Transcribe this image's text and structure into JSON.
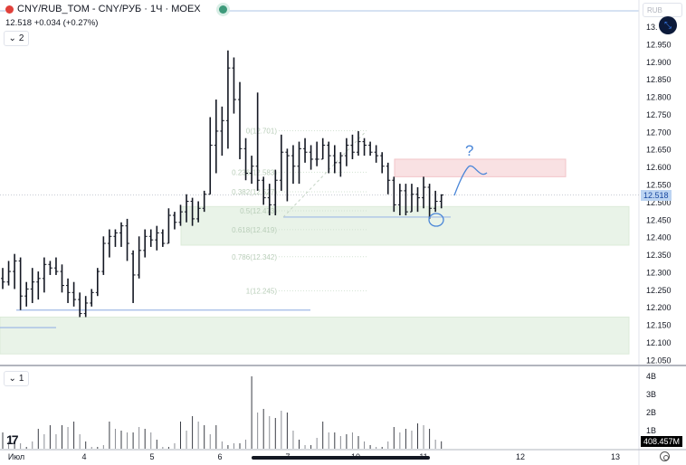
{
  "header": {
    "symbol": "CNY/RUB_TOM - CNY/РУБ · 1Ч · MOEX",
    "last": "12.518",
    "change": "+0.034 (+0.27%)",
    "pane1_toggle": "2",
    "pane2_toggle": "1",
    "currency": "RUB",
    "logo": "TV"
  },
  "price_axis": {
    "labels": [
      "13.",
      "12.950",
      "12.900",
      "12.850",
      "12.800",
      "12.750",
      "12.700",
      "12.650",
      "12.600",
      "12.550",
      "12.500",
      "12.450",
      "12.400",
      "12.350",
      "12.300",
      "12.250",
      "12.200",
      "12.150",
      "12.100",
      "12.050"
    ],
    "current": "12.518"
  },
  "volume_axis": {
    "labels": [
      "4B",
      "3B",
      "2B",
      "1B"
    ],
    "current": "408.457M"
  },
  "time_axis": {
    "labels": [
      "Июл",
      "4",
      "5",
      "6",
      "7",
      "10",
      "11",
      "12",
      "13"
    ]
  },
  "drawings": {
    "question_mark": "?"
  },
  "colors": {
    "bar": "#131722",
    "zone_green": "#e9f3e8",
    "zone_red": "#f9e1e3",
    "line_blue": "#9fb9e6",
    "ink": "#4a86d8"
  },
  "chart_data": {
    "type": "ohlc",
    "title": "CNY/RUB_TOM 1H",
    "ylim": [
      12.03,
      13.0
    ],
    "ohlc": [
      [
        12.28,
        12.31,
        12.25,
        12.27
      ],
      [
        12.27,
        12.33,
        12.26,
        12.3
      ],
      [
        12.3,
        12.35,
        12.25,
        12.33
      ],
      [
        12.33,
        12.34,
        12.19,
        12.23
      ],
      [
        12.23,
        12.27,
        12.2,
        12.25
      ],
      [
        12.25,
        12.31,
        12.21,
        12.27
      ],
      [
        12.27,
        12.3,
        12.22,
        12.28
      ],
      [
        12.28,
        12.34,
        12.24,
        12.32
      ],
      [
        12.32,
        12.33,
        12.29,
        12.31
      ],
      [
        12.31,
        12.34,
        12.29,
        12.3
      ],
      [
        12.3,
        12.32,
        12.24,
        12.26
      ],
      [
        12.26,
        12.28,
        12.21,
        12.24
      ],
      [
        12.24,
        12.27,
        12.2,
        12.22
      ],
      [
        12.22,
        12.24,
        12.17,
        12.18
      ],
      [
        12.18,
        12.23,
        12.17,
        12.21
      ],
      [
        12.21,
        12.25,
        12.2,
        12.24
      ],
      [
        12.24,
        12.31,
        12.23,
        12.3
      ],
      [
        12.3,
        12.4,
        12.29,
        12.38
      ],
      [
        12.38,
        12.42,
        12.34,
        12.4
      ],
      [
        12.4,
        12.42,
        12.37,
        12.41
      ],
      [
        12.41,
        12.44,
        12.37,
        12.43
      ],
      [
        12.43,
        12.45,
        12.33,
        12.38
      ],
      [
        12.35,
        12.36,
        12.21,
        12.29
      ],
      [
        12.29,
        12.4,
        12.28,
        12.36
      ],
      [
        12.36,
        12.42,
        12.34,
        12.4
      ],
      [
        12.4,
        12.42,
        12.37,
        12.39
      ],
      [
        12.39,
        12.43,
        12.36,
        12.41
      ],
      [
        12.41,
        12.42,
        12.37,
        12.38
      ],
      [
        12.38,
        12.48,
        12.38,
        12.46
      ],
      [
        12.46,
        12.47,
        12.42,
        12.44
      ],
      [
        12.44,
        12.49,
        12.43,
        12.47
      ],
      [
        12.47,
        12.52,
        12.44,
        12.5
      ],
      [
        12.5,
        12.51,
        12.43,
        12.45
      ],
      [
        12.45,
        12.5,
        12.44,
        12.48
      ],
      [
        12.48,
        12.53,
        12.47,
        12.52
      ],
      [
        12.52,
        12.74,
        12.52,
        12.66
      ],
      [
        12.66,
        12.79,
        12.58,
        12.7
      ],
      [
        12.7,
        12.77,
        12.63,
        12.73
      ],
      [
        12.73,
        12.93,
        12.65,
        12.88
      ],
      [
        12.88,
        12.91,
        12.75,
        12.79
      ],
      [
        12.79,
        12.84,
        12.62,
        12.65
      ],
      [
        12.65,
        12.68,
        12.56,
        12.58
      ],
      [
        12.58,
        12.63,
        12.55,
        12.6
      ],
      [
        12.6,
        12.81,
        12.53,
        12.56
      ],
      [
        12.56,
        12.57,
        12.49,
        12.51
      ],
      [
        12.51,
        12.55,
        12.46,
        12.49
      ],
      [
        12.49,
        12.59,
        12.46,
        12.56
      ],
      [
        12.56,
        12.69,
        12.53,
        12.64
      ],
      [
        12.64,
        12.65,
        12.5,
        12.63
      ],
      [
        12.63,
        12.66,
        12.55,
        12.6
      ],
      [
        12.6,
        12.67,
        12.55,
        12.65
      ],
      [
        12.65,
        12.68,
        12.61,
        12.64
      ],
      [
        12.64,
        12.66,
        12.59,
        12.62
      ],
      [
        12.62,
        12.67,
        12.6,
        12.62
      ],
      [
        12.62,
        12.68,
        12.62,
        12.66
      ],
      [
        12.66,
        12.67,
        12.58,
        12.63
      ],
      [
        12.63,
        12.66,
        12.58,
        12.61
      ],
      [
        12.61,
        12.64,
        12.57,
        12.63
      ],
      [
        12.63,
        12.68,
        12.6,
        12.66
      ],
      [
        12.66,
        12.69,
        12.62,
        12.64
      ],
      [
        12.64,
        12.7,
        12.63,
        12.67
      ],
      [
        12.67,
        12.68,
        12.63,
        12.66
      ],
      [
        12.66,
        12.67,
        12.63,
        12.64
      ],
      [
        12.64,
        12.66,
        12.61,
        12.63
      ],
      [
        12.63,
        12.64,
        12.58,
        12.6
      ],
      [
        12.6,
        12.61,
        12.52,
        12.56
      ],
      [
        12.56,
        12.57,
        12.47,
        12.49
      ],
      [
        12.49,
        12.55,
        12.46,
        12.53
      ],
      [
        12.53,
        12.55,
        12.46,
        12.47
      ],
      [
        12.47,
        12.55,
        12.47,
        12.52
      ],
      [
        12.52,
        12.54,
        12.47,
        12.51
      ],
      [
        12.51,
        12.57,
        12.48,
        12.54
      ],
      [
        12.54,
        12.55,
        12.45,
        12.48
      ],
      [
        12.48,
        12.53,
        12.47,
        12.5
      ],
      [
        12.5,
        12.52,
        12.48,
        12.518
      ]
    ],
    "volume_billions": [
      0.9,
      0.4,
      0.4,
      0.3,
      0.1,
      0.4,
      1.1,
      0.8,
      1.3,
      0.8,
      1.3,
      1.2,
      1.5,
      0.8,
      0.4,
      0.1,
      0.1,
      0.2,
      1.5,
      1.1,
      1.0,
      0.9,
      0.9,
      1.2,
      1.1,
      0.9,
      0.5,
      0.1,
      0.1,
      0.3,
      1.5,
      1.0,
      1.8,
      1.5,
      1.3,
      0.8,
      1.3,
      0.4,
      0.2,
      0.3,
      0.3,
      0.5,
      4.0,
      2.0,
      2.2,
      1.8,
      1.7,
      2.1,
      2.0,
      1.0,
      0.5,
      0.2,
      0.2,
      0.6,
      1.5,
      0.9,
      0.9,
      0.7,
      0.8,
      0.9,
      0.7,
      0.4,
      0.2,
      0.1,
      0.1,
      0.4,
      1.2,
      0.9,
      1.1,
      1.0,
      1.4,
      1.3,
      1.1,
      0.5,
      0.41
    ],
    "fib_levels": [
      {
        "label": "0(12.701)",
        "value": 12.701
      },
      {
        "label": "0.236(12.583)",
        "value": 12.583
      },
      {
        "label": "0.382(12.527)",
        "value": 12.527
      },
      {
        "label": "0.5(12.473)",
        "value": 12.473
      },
      {
        "label": "0.618(12.419)",
        "value": 12.419
      },
      {
        "label": "0.786(12.342)",
        "value": 12.342
      },
      {
        "label": "1(12.245)",
        "value": 12.245
      }
    ],
    "zones": [
      {
        "kind": "demand",
        "from": 12.375,
        "to": 12.485
      },
      {
        "kind": "demand",
        "from": 12.065,
        "to": 12.17
      },
      {
        "kind": "supply",
        "from": 12.57,
        "to": 12.62
      }
    ],
    "hlines": [
      12.455,
      12.19,
      12.14
    ]
  }
}
